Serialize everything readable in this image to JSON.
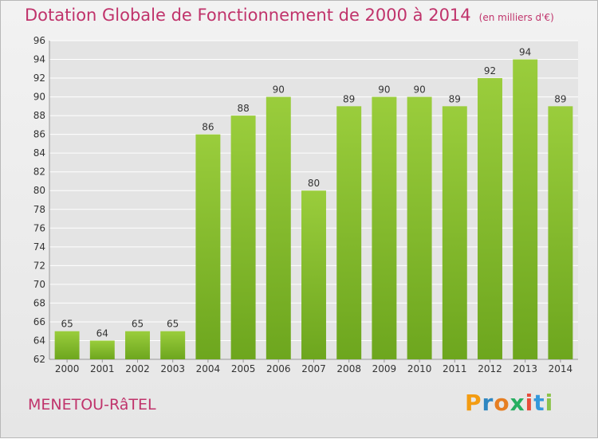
{
  "title": "Dotation Globale de Fonctionnement de 2000 à 2014",
  "unit": "(en milliers d'€)",
  "city": "MENETOU-RâTEL",
  "logo": {
    "letters": [
      "P",
      "r",
      "o",
      "x",
      "i",
      "t",
      "i"
    ],
    "colors": [
      "#f39c12",
      "#2e86c1",
      "#e67e22",
      "#27ae60",
      "#e74c3c",
      "#3498db",
      "#8bc34a"
    ]
  },
  "colors": {
    "title": "#c0336b",
    "bar_light": "#9acd3c",
    "bar_dark": "#6da61e",
    "grid": "#ffffff",
    "axis_text": "#333333"
  },
  "chart_data": {
    "type": "bar",
    "title": "Dotation Globale de Fonctionnement de 2000 à 2014",
    "categories": [
      "2000",
      "2001",
      "2002",
      "2003",
      "2004",
      "2005",
      "2006",
      "2007",
      "2008",
      "2009",
      "2010",
      "2011",
      "2012",
      "2013",
      "2014"
    ],
    "values": [
      65,
      64,
      65,
      65,
      86,
      88,
      90,
      80,
      89,
      90,
      90,
      89,
      92,
      94,
      89
    ],
    "xlabel": "",
    "ylabel": "",
    "ylim": [
      62,
      96
    ],
    "yticks": [
      62,
      64,
      66,
      68,
      70,
      72,
      74,
      76,
      78,
      80,
      82,
      84,
      86,
      88,
      90,
      92,
      94,
      96
    ],
    "grid": true,
    "data_labels": true
  }
}
